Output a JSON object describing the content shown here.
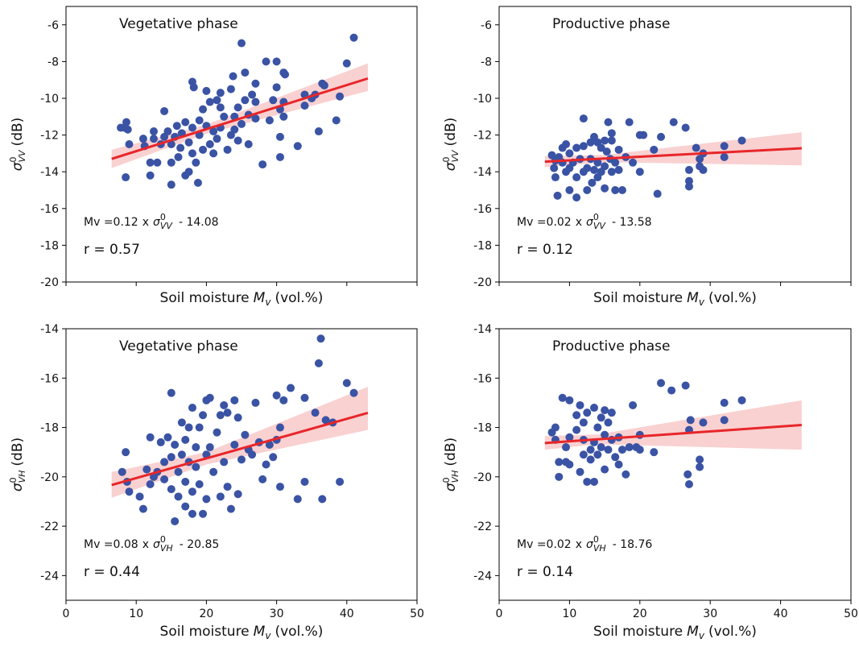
{
  "chart_data": [
    {
      "type": "scatter",
      "title": "Vegetative phase",
      "color": "#3a53a4",
      "xlim": [
        0,
        50
      ],
      "ylim": [
        -20,
        -5
      ],
      "xticks": [
        0,
        10,
        20,
        30,
        40,
        50
      ],
      "xtick_labels": false,
      "yticks": [
        -20,
        -18,
        -16,
        -14,
        -12,
        -10,
        -8,
        -6
      ],
      "xlabel": {
        "text": "Soil moisture",
        "symbol": "M",
        "sub": "v",
        "unit": "(vol.%)"
      },
      "ylabel": {
        "symbol": "σ",
        "sup": "0",
        "sub": "VV",
        "unit": "(dB)"
      },
      "equation": {
        "lhs": "Mv =",
        "times": "x",
        "symbol": "σ",
        "sup": "0",
        "sub": "VV"
      },
      "fit": {
        "slope": 0.12,
        "intercept": {
          "value": -14.08,
          "label": "- 14.08"
        },
        "x": [
          6.5,
          43
        ],
        "color": "#e8262a"
      },
      "band": {
        "x": [
          6.5,
          20,
          43
        ],
        "lower": [
          -13.8,
          -11.93,
          -9.6
        ],
        "upper": [
          -12.8,
          -11.43,
          -8.1
        ],
        "color": "#f7c6c6"
      },
      "r_text": "r = 0.57",
      "x": [
        8.5,
        8.3,
        8.6,
        8.8,
        9,
        7.8,
        11,
        11.2,
        12,
        12,
        12.5,
        12.5,
        13,
        13.5,
        14,
        14,
        14.5,
        15,
        15,
        15.5,
        15,
        15.8,
        16,
        16.3,
        16.5,
        17,
        17,
        17.5,
        17.5,
        18,
        18,
        18,
        18.2,
        18.5,
        18.8,
        19,
        19,
        19.5,
        19.5,
        20,
        20,
        20.5,
        20.5,
        21,
        21,
        21.5,
        21.5,
        22,
        22,
        22,
        22.5,
        23,
        23.5,
        23.5,
        23.8,
        24,
        24,
        24.5,
        24.5,
        25,
        25,
        25.5,
        25.5,
        26,
        26,
        26.5,
        27,
        27,
        27,
        28,
        28.5,
        29,
        29.5,
        30,
        30,
        30.5,
        30.5,
        30.5,
        31,
        31,
        31,
        31.2,
        33,
        34,
        34,
        35,
        35.5,
        36,
        36.5,
        36.8,
        38.5,
        39,
        40,
        41
      ],
      "y": [
        -14.3,
        -11.6,
        -11.3,
        -11.7,
        -12.5,
        -11.6,
        -12.2,
        -12.6,
        -14.2,
        -13.5,
        -12.2,
        -11.8,
        -13.5,
        -12.5,
        -10.7,
        -12.1,
        -11.8,
        -12.5,
        -13.5,
        -12.1,
        -14.7,
        -11.5,
        -13.2,
        -12.7,
        -11.9,
        -11.3,
        -14.2,
        -12.4,
        -14,
        -9.1,
        -11.6,
        -13,
        -9.4,
        -13.5,
        -14.6,
        -12,
        -11.2,
        -10.6,
        -12.8,
        -9.6,
        -11.5,
        -12.5,
        -10.2,
        -13,
        -11.8,
        -10.1,
        -12.2,
        -11.6,
        -9.7,
        -10.5,
        -11,
        -12.8,
        -12,
        -9.5,
        -8.8,
        -11,
        -11.7,
        -12.3,
        -10.5,
        -7,
        -11.4,
        -10.1,
        -8.6,
        -10.9,
        -12.5,
        -9.8,
        -11.1,
        -10.2,
        -9.2,
        -13.6,
        -8,
        -11.2,
        -10.1,
        -9.4,
        -8,
        -10.6,
        -12.1,
        -13.2,
        -8.6,
        -10.2,
        -11,
        -8.7,
        -12.6,
        -9.8,
        -10.4,
        -10,
        -9.8,
        -11.8,
        -9.2,
        -9.3,
        -11.2,
        -9.9,
        -8.1,
        -6.7
      ]
    },
    {
      "type": "scatter",
      "title": "Productive phase",
      "color": "#3a53a4",
      "xlim": [
        0,
        50
      ],
      "ylim": [
        -20,
        -5
      ],
      "xticks": [
        0,
        10,
        20,
        30,
        40,
        50
      ],
      "xtick_labels": false,
      "yticks": [
        -20,
        -18,
        -16,
        -14,
        -12,
        -10,
        -8,
        -6
      ],
      "xlabel": {
        "text": "Soil moisture",
        "symbol": "M",
        "sub": "v",
        "unit": "(vol.%)"
      },
      "ylabel": {
        "symbol": "σ",
        "sup": "0",
        "sub": "VV",
        "unit": "(dB)"
      },
      "equation": {
        "lhs": "Mv =",
        "times": "x",
        "symbol": "σ",
        "sup": "0",
        "sub": "VV"
      },
      "fit": {
        "slope": 0.02,
        "intercept": {
          "value": -13.58,
          "label": "- 13.58"
        },
        "x": [
          6.5,
          43
        ],
        "color": "#e8262a"
      },
      "band": {
        "x": [
          6.5,
          15,
          43
        ],
        "lower": [
          -13.75,
          -13.48,
          -13.65
        ],
        "upper": [
          -13.15,
          -13.08,
          -11.85
        ],
        "color": "#f7c6c6"
      },
      "r_text": "r = 0.12",
      "x": [
        7.5,
        7.8,
        8,
        8,
        8.3,
        8.5,
        9,
        9,
        9.5,
        9.5,
        10,
        10,
        10,
        10.5,
        11,
        11,
        11,
        11.5,
        12,
        12,
        12,
        12.5,
        12.5,
        13,
        13,
        13.2,
        13.5,
        13.5,
        14,
        14,
        14,
        14.5,
        14.5,
        15,
        15,
        15,
        15.3,
        15.5,
        15.8,
        16,
        16,
        16,
        16.5,
        16.5,
        17,
        17,
        17.5,
        18,
        18.5,
        19,
        20,
        20,
        20.5,
        22,
        22.5,
        23,
        24.8,
        26.5,
        27,
        27,
        27,
        28,
        28.5,
        28.5,
        29,
        29,
        32,
        32,
        34.5
      ],
      "y": [
        -13.1,
        -13.8,
        -13.4,
        -14.3,
        -15.3,
        -13.2,
        -12.7,
        -13.5,
        -14,
        -12.5,
        -13,
        -13.8,
        -15,
        -13.5,
        -12.7,
        -14.3,
        -15.4,
        -13.3,
        -11.1,
        -12.6,
        -14,
        -13.8,
        -15,
        -12.4,
        -13.3,
        -14.6,
        -12.1,
        -13.9,
        -12.4,
        -13.5,
        -14.3,
        -12.7,
        -14,
        -12.3,
        -13.7,
        -14.9,
        -12.9,
        -11.3,
        -13.3,
        -12.3,
        -11.9,
        -14,
        -13.5,
        -15,
        -12.8,
        -13.9,
        -15,
        -13.2,
        -11.3,
        -13.5,
        -12,
        -14,
        -12,
        -12.8,
        -15.2,
        -12.1,
        -11.3,
        -11.6,
        -14.5,
        -14.8,
        -13.9,
        -12.7,
        -13.3,
        -13.7,
        -13.9,
        -13,
        -12.6,
        -13.2,
        -12.3
      ]
    },
    {
      "type": "scatter",
      "title": "Vegetative phase",
      "color": "#3a53a4",
      "xlim": [
        0,
        50
      ],
      "ylim": [
        -25,
        -14
      ],
      "xticks": [
        0,
        10,
        20,
        30,
        40,
        50
      ],
      "xtick_labels": true,
      "yticks": [
        -24,
        -22,
        -20,
        -18,
        -16,
        -14
      ],
      "xlabel": {
        "text": "Soil moisture",
        "symbol": "M",
        "sub": "v",
        "unit": "(vol.%)"
      },
      "ylabel": {
        "symbol": "σ",
        "sup": "0",
        "sub": "VH",
        "unit": "(dB)"
      },
      "equation": {
        "lhs": "Mv =",
        "times": "x",
        "symbol": "σ",
        "sup": "0",
        "sub": "VH"
      },
      "fit": {
        "slope": 0.08,
        "intercept": {
          "value": -20.85,
          "label": "- 20.85"
        },
        "x": [
          6.5,
          43
        ],
        "color": "#e8262a"
      },
      "band": {
        "x": [
          6.5,
          20,
          43
        ],
        "lower": [
          -20.85,
          -19.5,
          -18.1
        ],
        "upper": [
          -19.8,
          -19.0,
          -16.35
        ],
        "color": "#f7c6c6"
      },
      "r_text": "r = 0.44",
      "x": [
        8,
        8.5,
        8.7,
        9,
        10.5,
        11,
        11.5,
        12,
        12,
        12.5,
        13,
        13.5,
        14,
        14,
        14.5,
        15,
        15,
        15,
        15.5,
        15.5,
        16,
        16,
        16.5,
        16.5,
        17,
        17,
        17,
        17.5,
        17.5,
        18,
        18,
        18,
        18.5,
        18.5,
        19,
        19,
        19.5,
        19.5,
        20,
        20,
        20,
        20.5,
        20.5,
        21,
        21.5,
        22,
        22,
        22.5,
        22.5,
        23,
        23,
        23.5,
        24,
        24,
        24.5,
        24.5,
        25,
        25.5,
        26,
        26.5,
        27,
        27.5,
        28,
        28.5,
        29,
        29.5,
        30,
        30,
        30.5,
        30.5,
        31,
        32,
        33,
        34,
        34,
        35.5,
        36,
        36.3,
        36.5,
        37,
        38,
        39,
        40,
        41
      ],
      "y": [
        -19.8,
        -19,
        -20.2,
        -20.6,
        -20.8,
        -21.3,
        -19.7,
        -20.3,
        -18.4,
        -20,
        -19.8,
        -18.6,
        -20.1,
        -19.4,
        -18.4,
        -16.6,
        -19.2,
        -20.5,
        -21.8,
        -18.7,
        -19.8,
        -20.8,
        -19.1,
        -17.8,
        -18.5,
        -20.2,
        -21.2,
        -18,
        -19.4,
        -17.2,
        -20.6,
        -21.5,
        -19.6,
        -18.8,
        -18,
        -20.3,
        -21.5,
        -17.5,
        -16.9,
        -19.1,
        -20.9,
        -16.8,
        -18.8,
        -19.8,
        -18.2,
        -17.5,
        -20.8,
        -17.1,
        -19.4,
        -17.4,
        -20.4,
        -21.3,
        -16.9,
        -18.7,
        -17.6,
        -20.7,
        -19.3,
        -18.3,
        -18.9,
        -19.1,
        -17,
        -18.6,
        -20.1,
        -19.5,
        -18.7,
        -19.2,
        -18.5,
        -16.7,
        -20.4,
        -18,
        -16.9,
        -16.4,
        -20.9,
        -16.8,
        -20.2,
        -17.4,
        -15.4,
        -14.4,
        -20.9,
        -17.7,
        -17.8,
        -20.2,
        -16.2,
        -16.6
      ]
    },
    {
      "type": "scatter",
      "title": "Productive phase",
      "color": "#3a53a4",
      "xlim": [
        0,
        50
      ],
      "ylim": [
        -25,
        -14
      ],
      "xticks": [
        0,
        10,
        20,
        30,
        40,
        50
      ],
      "xtick_labels": true,
      "yticks": [
        -24,
        -22,
        -20,
        -18,
        -16,
        -14
      ],
      "xlabel": {
        "text": "Soil moisture",
        "symbol": "M",
        "sub": "v",
        "unit": "(vol.%)"
      },
      "ylabel": {
        "symbol": "σ",
        "sup": "0",
        "sub": "VH",
        "unit": "(dB)"
      },
      "equation": {
        "lhs": "Mv =",
        "times": "x",
        "symbol": "σ",
        "sup": "0",
        "sub": "VH"
      },
      "fit": {
        "slope": 0.02,
        "intercept": {
          "value": -18.76,
          "label": "- 18.76"
        },
        "x": [
          6.5,
          43
        ],
        "color": "#e8262a"
      },
      "band": {
        "x": [
          6.5,
          14,
          43
        ],
        "lower": [
          -18.9,
          -18.68,
          -18.9
        ],
        "upper": [
          -18.35,
          -18.28,
          -16.9
        ],
        "color": "#f7c6c6"
      },
      "r_text": "r = 0.14",
      "x": [
        7.5,
        8,
        8,
        8.5,
        8.5,
        9,
        9.5,
        9.5,
        10,
        10,
        10,
        11,
        11,
        11.5,
        11.5,
        12,
        12,
        12,
        12.5,
        12.5,
        13,
        13,
        13.5,
        13.5,
        13.5,
        14,
        14,
        14.5,
        14.5,
        15,
        15,
        15,
        15.5,
        15.5,
        16,
        16,
        16.5,
        17,
        17,
        17.5,
        18,
        18.5,
        19,
        19.5,
        20,
        20,
        22,
        23,
        24.5,
        26.5,
        26.8,
        27,
        27,
        27.2,
        28.5,
        28.5,
        29,
        32,
        32,
        34.5
      ],
      "y": [
        -18.2,
        -18,
        -18.5,
        -19.4,
        -20,
        -16.8,
        -18.8,
        -19.4,
        -16.9,
        -18.4,
        -19.5,
        -17.5,
        -18.1,
        -19.8,
        -17.1,
        -18.5,
        -19.1,
        -17.8,
        -20.2,
        -17.4,
        -18.9,
        -19.3,
        -17.2,
        -18.6,
        -20.2,
        -18,
        -19.1,
        -17.6,
        -18.8,
        -17.3,
        -18.3,
        -19.7,
        -17.8,
        -18.9,
        -17.4,
        -18.5,
        -19.2,
        -18.4,
        -19.5,
        -18.9,
        -19.9,
        -18.8,
        -17.1,
        -18.8,
        -18.3,
        -18.9,
        -19,
        -16.2,
        -16.5,
        -16.3,
        -19.9,
        -20.3,
        -18.1,
        -17.7,
        -19.6,
        -19.3,
        -17.8,
        -17.7,
        -17,
        -16.9
      ]
    }
  ]
}
